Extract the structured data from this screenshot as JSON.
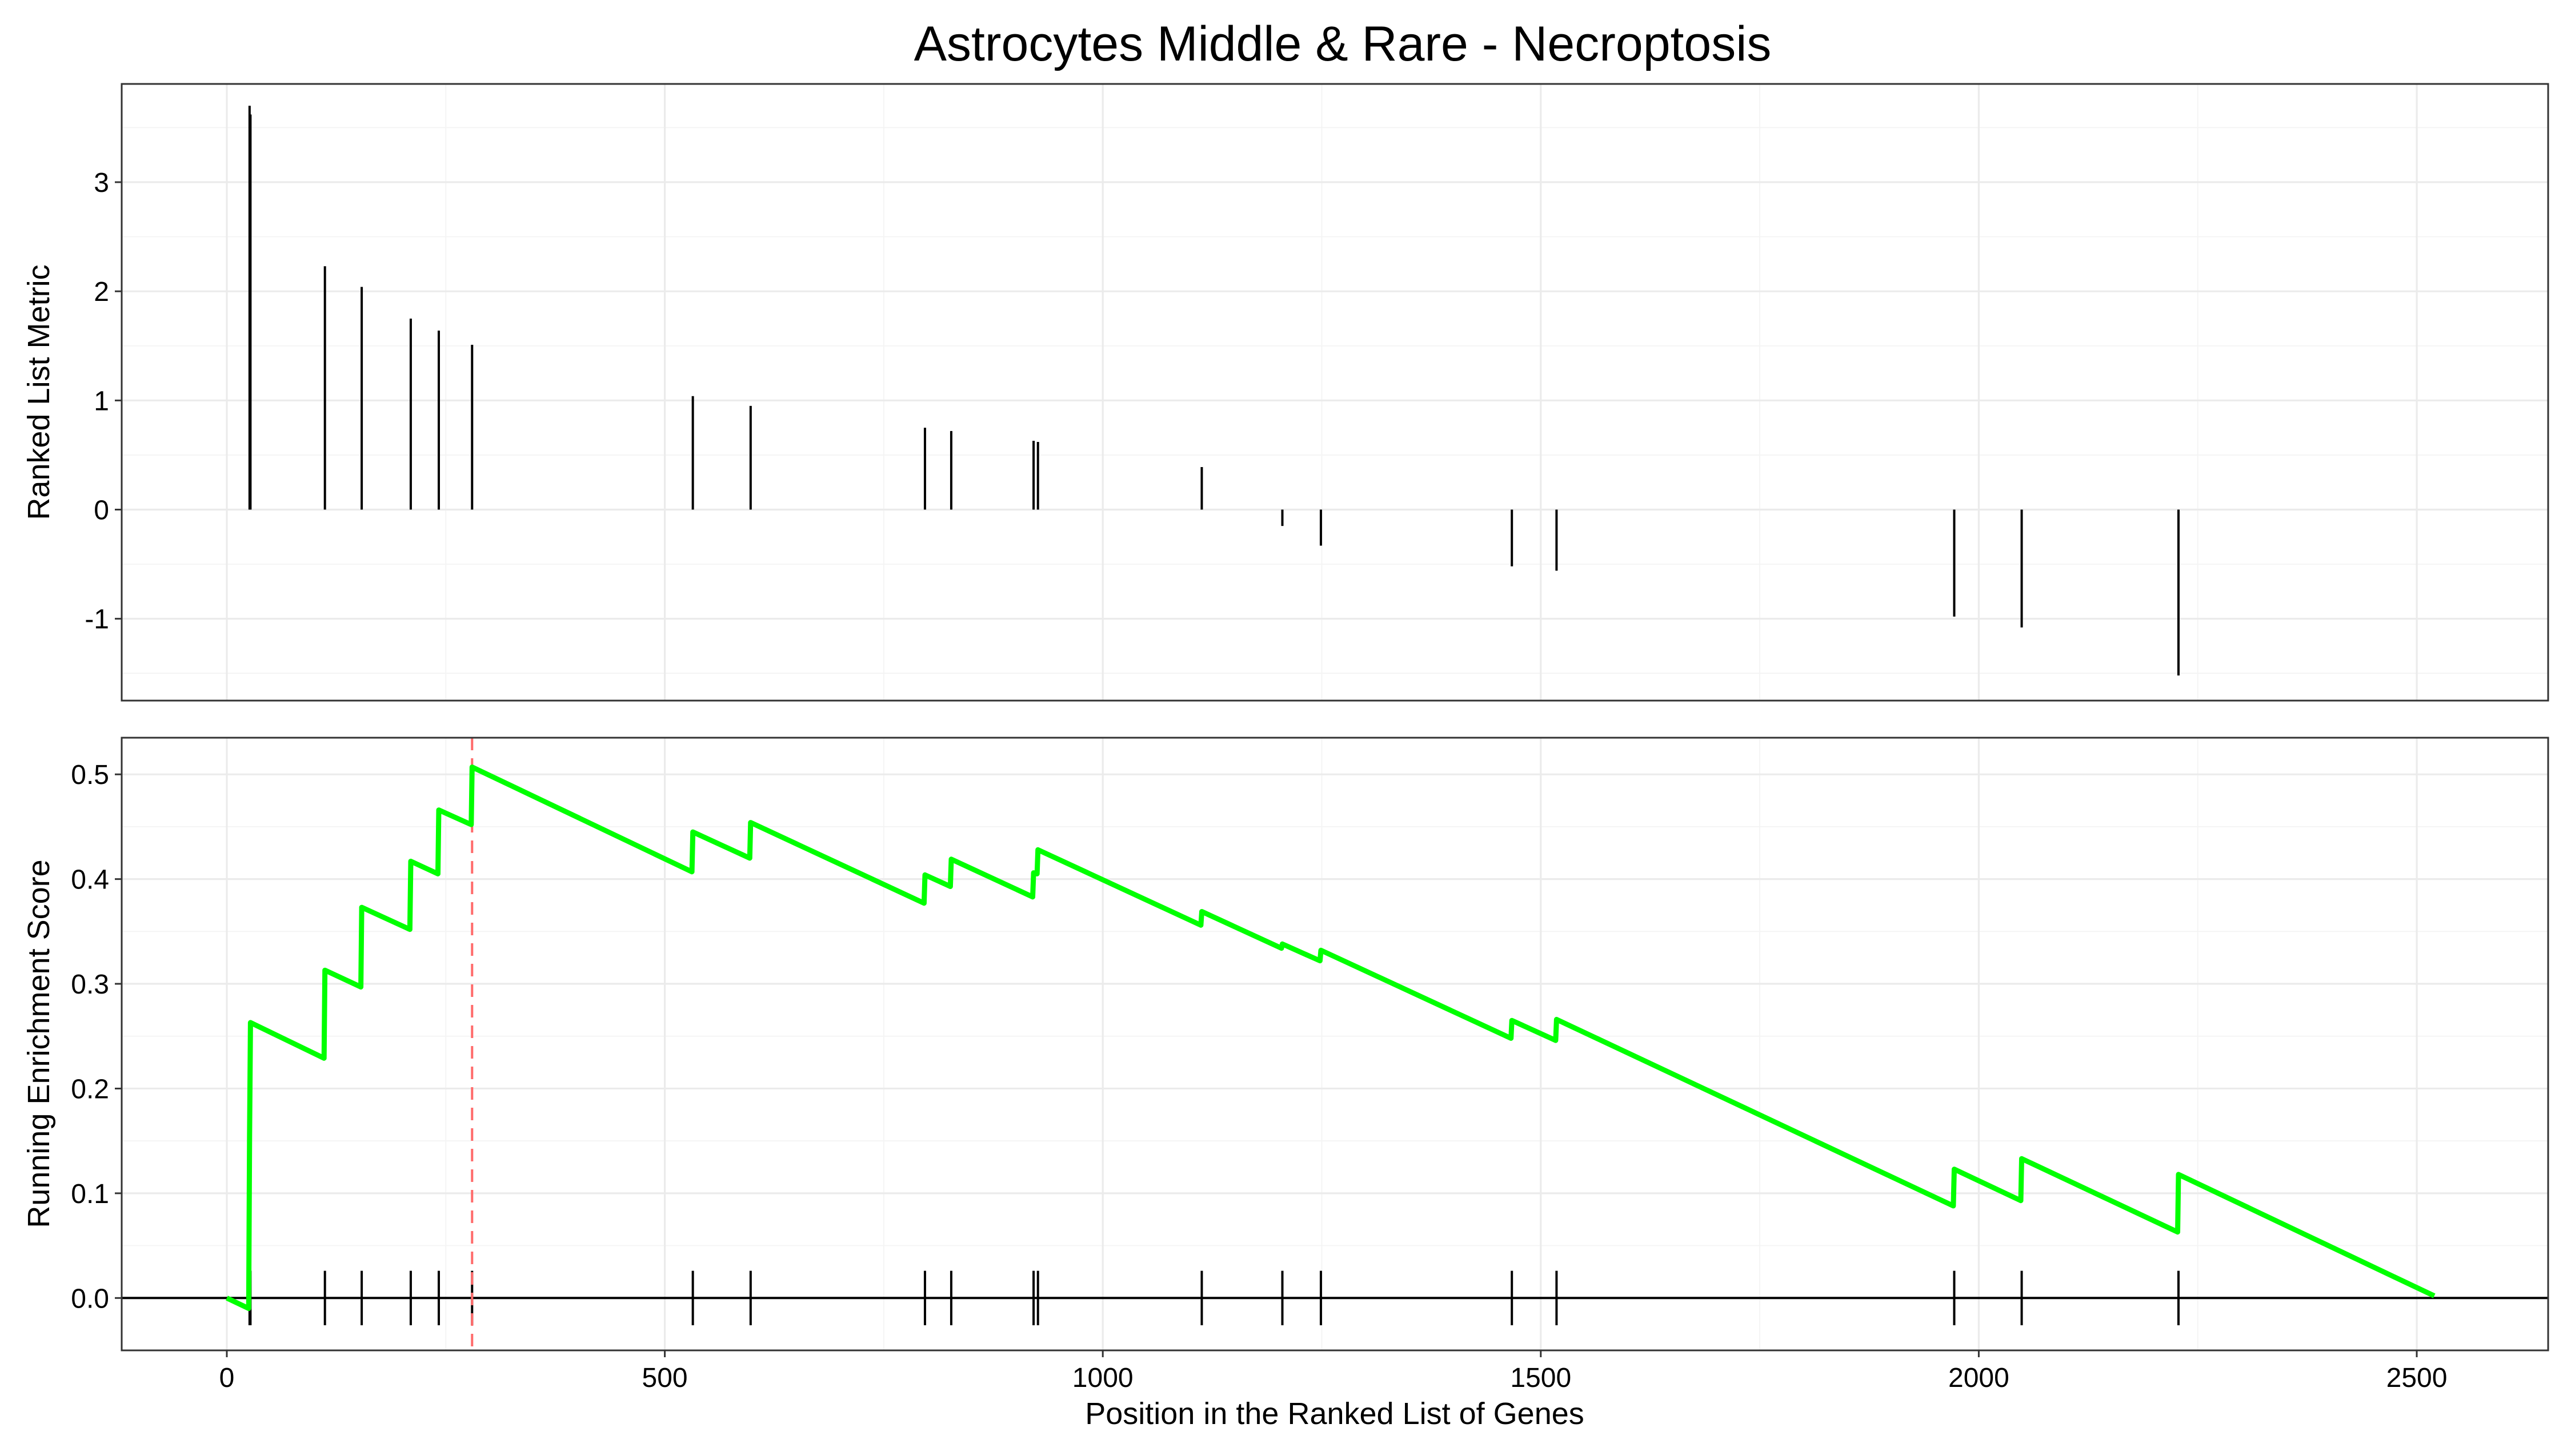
{
  "title": "Astrocytes Middle & Rare - Necroptosis",
  "chart_data": [
    {
      "type": "bar",
      "panel": "ranked-list-metric",
      "ylabel": "Ranked List Metric",
      "xlim": [
        -120,
        2650
      ],
      "ylim": [
        -1.75,
        3.9
      ],
      "x_ticks": [
        0,
        500,
        1000,
        1500,
        2000,
        2500
      ],
      "y_ticks": [
        -1,
        0,
        1,
        2,
        3
      ],
      "y_tick_labels": [
        "-1",
        "0",
        "1",
        "2",
        "3"
      ],
      "grid": true,
      "series": [
        {
          "x": [
            26,
            27,
            112,
            154,
            210,
            242,
            280,
            532,
            598,
            797,
            827,
            921,
            926,
            1113,
            1205,
            1249,
            1467,
            1518,
            1972,
            2049,
            2228
          ],
          "values": [
            3.7,
            3.62,
            2.23,
            2.04,
            1.75,
            1.64,
            1.51,
            1.04,
            0.95,
            0.75,
            0.72,
            0.63,
            0.62,
            0.39,
            -0.15,
            -0.33,
            -0.52,
            -0.56,
            -0.98,
            -1.08,
            -1.52
          ]
        }
      ]
    },
    {
      "type": "line",
      "panel": "running-enrichment-score",
      "xlabel": "Position in the Ranked List of Genes",
      "ylabel": "Running Enrichment Score",
      "xlim": [
        -120,
        2650
      ],
      "ylim": [
        -0.05,
        0.535
      ],
      "x_ticks": [
        0,
        500,
        1000,
        1500,
        2000,
        2500
      ],
      "x_tick_labels": [
        "0",
        "500",
        "1000",
        "1500",
        "2000",
        "2500"
      ],
      "y_ticks": [
        0.0,
        0.1,
        0.2,
        0.3,
        0.4,
        0.5
      ],
      "y_tick_labels": [
        "0.0",
        "0.1",
        "0.2",
        "0.3",
        "0.4",
        "0.5"
      ],
      "grid": true,
      "line_color": "#00ff00",
      "peak_line_color": "#ff6b6b",
      "peak_position": 280,
      "series": [
        {
          "x": [
            0,
            25,
            26,
            27,
            111,
            112,
            153,
            154,
            209,
            210,
            241,
            242,
            279,
            280,
            531,
            532,
            597,
            598,
            796,
            797,
            826,
            827,
            920,
            921,
            925,
            926,
            1112,
            1113,
            1204,
            1205,
            1248,
            1249,
            1466,
            1467,
            1517,
            1518,
            1971,
            1972,
            2048,
            2049,
            2227,
            2228,
            2520
          ],
          "values": [
            0.0,
            -0.01,
            0.154,
            0.263,
            0.229,
            0.313,
            0.297,
            0.373,
            0.352,
            0.417,
            0.405,
            0.466,
            0.452,
            0.507,
            0.407,
            0.445,
            0.42,
            0.454,
            0.377,
            0.404,
            0.393,
            0.419,
            0.383,
            0.406,
            0.405,
            0.428,
            0.356,
            0.369,
            0.334,
            0.338,
            0.322,
            0.332,
            0.248,
            0.265,
            0.246,
            0.266,
            0.088,
            0.123,
            0.093,
            0.133,
            0.063,
            0.118,
            0.002
          ]
        }
      ],
      "hit_positions": [
        26,
        27,
        112,
        154,
        210,
        242,
        280,
        532,
        598,
        797,
        827,
        921,
        926,
        1113,
        1205,
        1249,
        1467,
        1518,
        1972,
        2049,
        2228
      ]
    }
  ]
}
